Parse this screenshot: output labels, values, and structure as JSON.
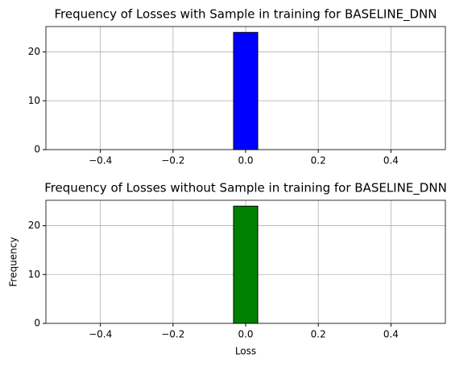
{
  "chart_data": [
    {
      "type": "histogram",
      "title": "Frequency of Losses with Sample in training for BASELINE_DNN",
      "bins": [
        -0.5,
        -0.4333,
        -0.3667,
        -0.3,
        -0.2333,
        -0.1667,
        -0.1,
        -0.0333,
        0.0333,
        0.1,
        0.1667,
        0.2333,
        0.3,
        0.3667,
        0.4333,
        0.5
      ],
      "values": [
        0,
        0,
        0,
        0,
        0,
        0,
        0,
        24,
        0,
        0,
        0,
        0,
        0,
        0,
        0
      ],
      "color": "blue",
      "edgecolor": "black",
      "xlim": [
        -0.55,
        0.55
      ],
      "xticks": [
        {
          "value": -0.4,
          "label": "−0.4"
        },
        {
          "value": -0.2,
          "label": "−0.2"
        },
        {
          "value": 0,
          "label": "0.0"
        },
        0.2,
        0.4
      ],
      "ylim": [
        0,
        25.2
      ],
      "yticks": [
        0,
        10,
        20
      ],
      "grid": true
    },
    {
      "type": "histogram",
      "title": "Frequency of Losses without Sample in training for BASELINE_DNN",
      "x_label": "Loss",
      "y_label": "Frequency",
      "bins": [
        -0.5,
        -0.4333,
        -0.3667,
        -0.3,
        -0.2333,
        -0.1667,
        -0.1,
        -0.0333,
        0.0333,
        0.1,
        0.1667,
        0.2333,
        0.3,
        0.3667,
        0.4333,
        0.5
      ],
      "values": [
        0,
        0,
        0,
        0,
        0,
        0,
        0,
        24,
        0,
        0,
        0,
        0,
        0,
        0,
        0
      ],
      "color": "green",
      "edgecolor": "black",
      "xlim": [
        -0.55,
        0.55
      ],
      "xticks": [
        {
          "value": -0.4,
          "label": "−0.4"
        },
        {
          "value": -0.2,
          "label": "−0.2"
        },
        {
          "value": 0,
          "label": "0.0"
        },
        0.2,
        0.4
      ],
      "ylim": [
        0,
        25.2
      ],
      "yticks": [
        0,
        10,
        20
      ],
      "grid": true
    }
  ]
}
